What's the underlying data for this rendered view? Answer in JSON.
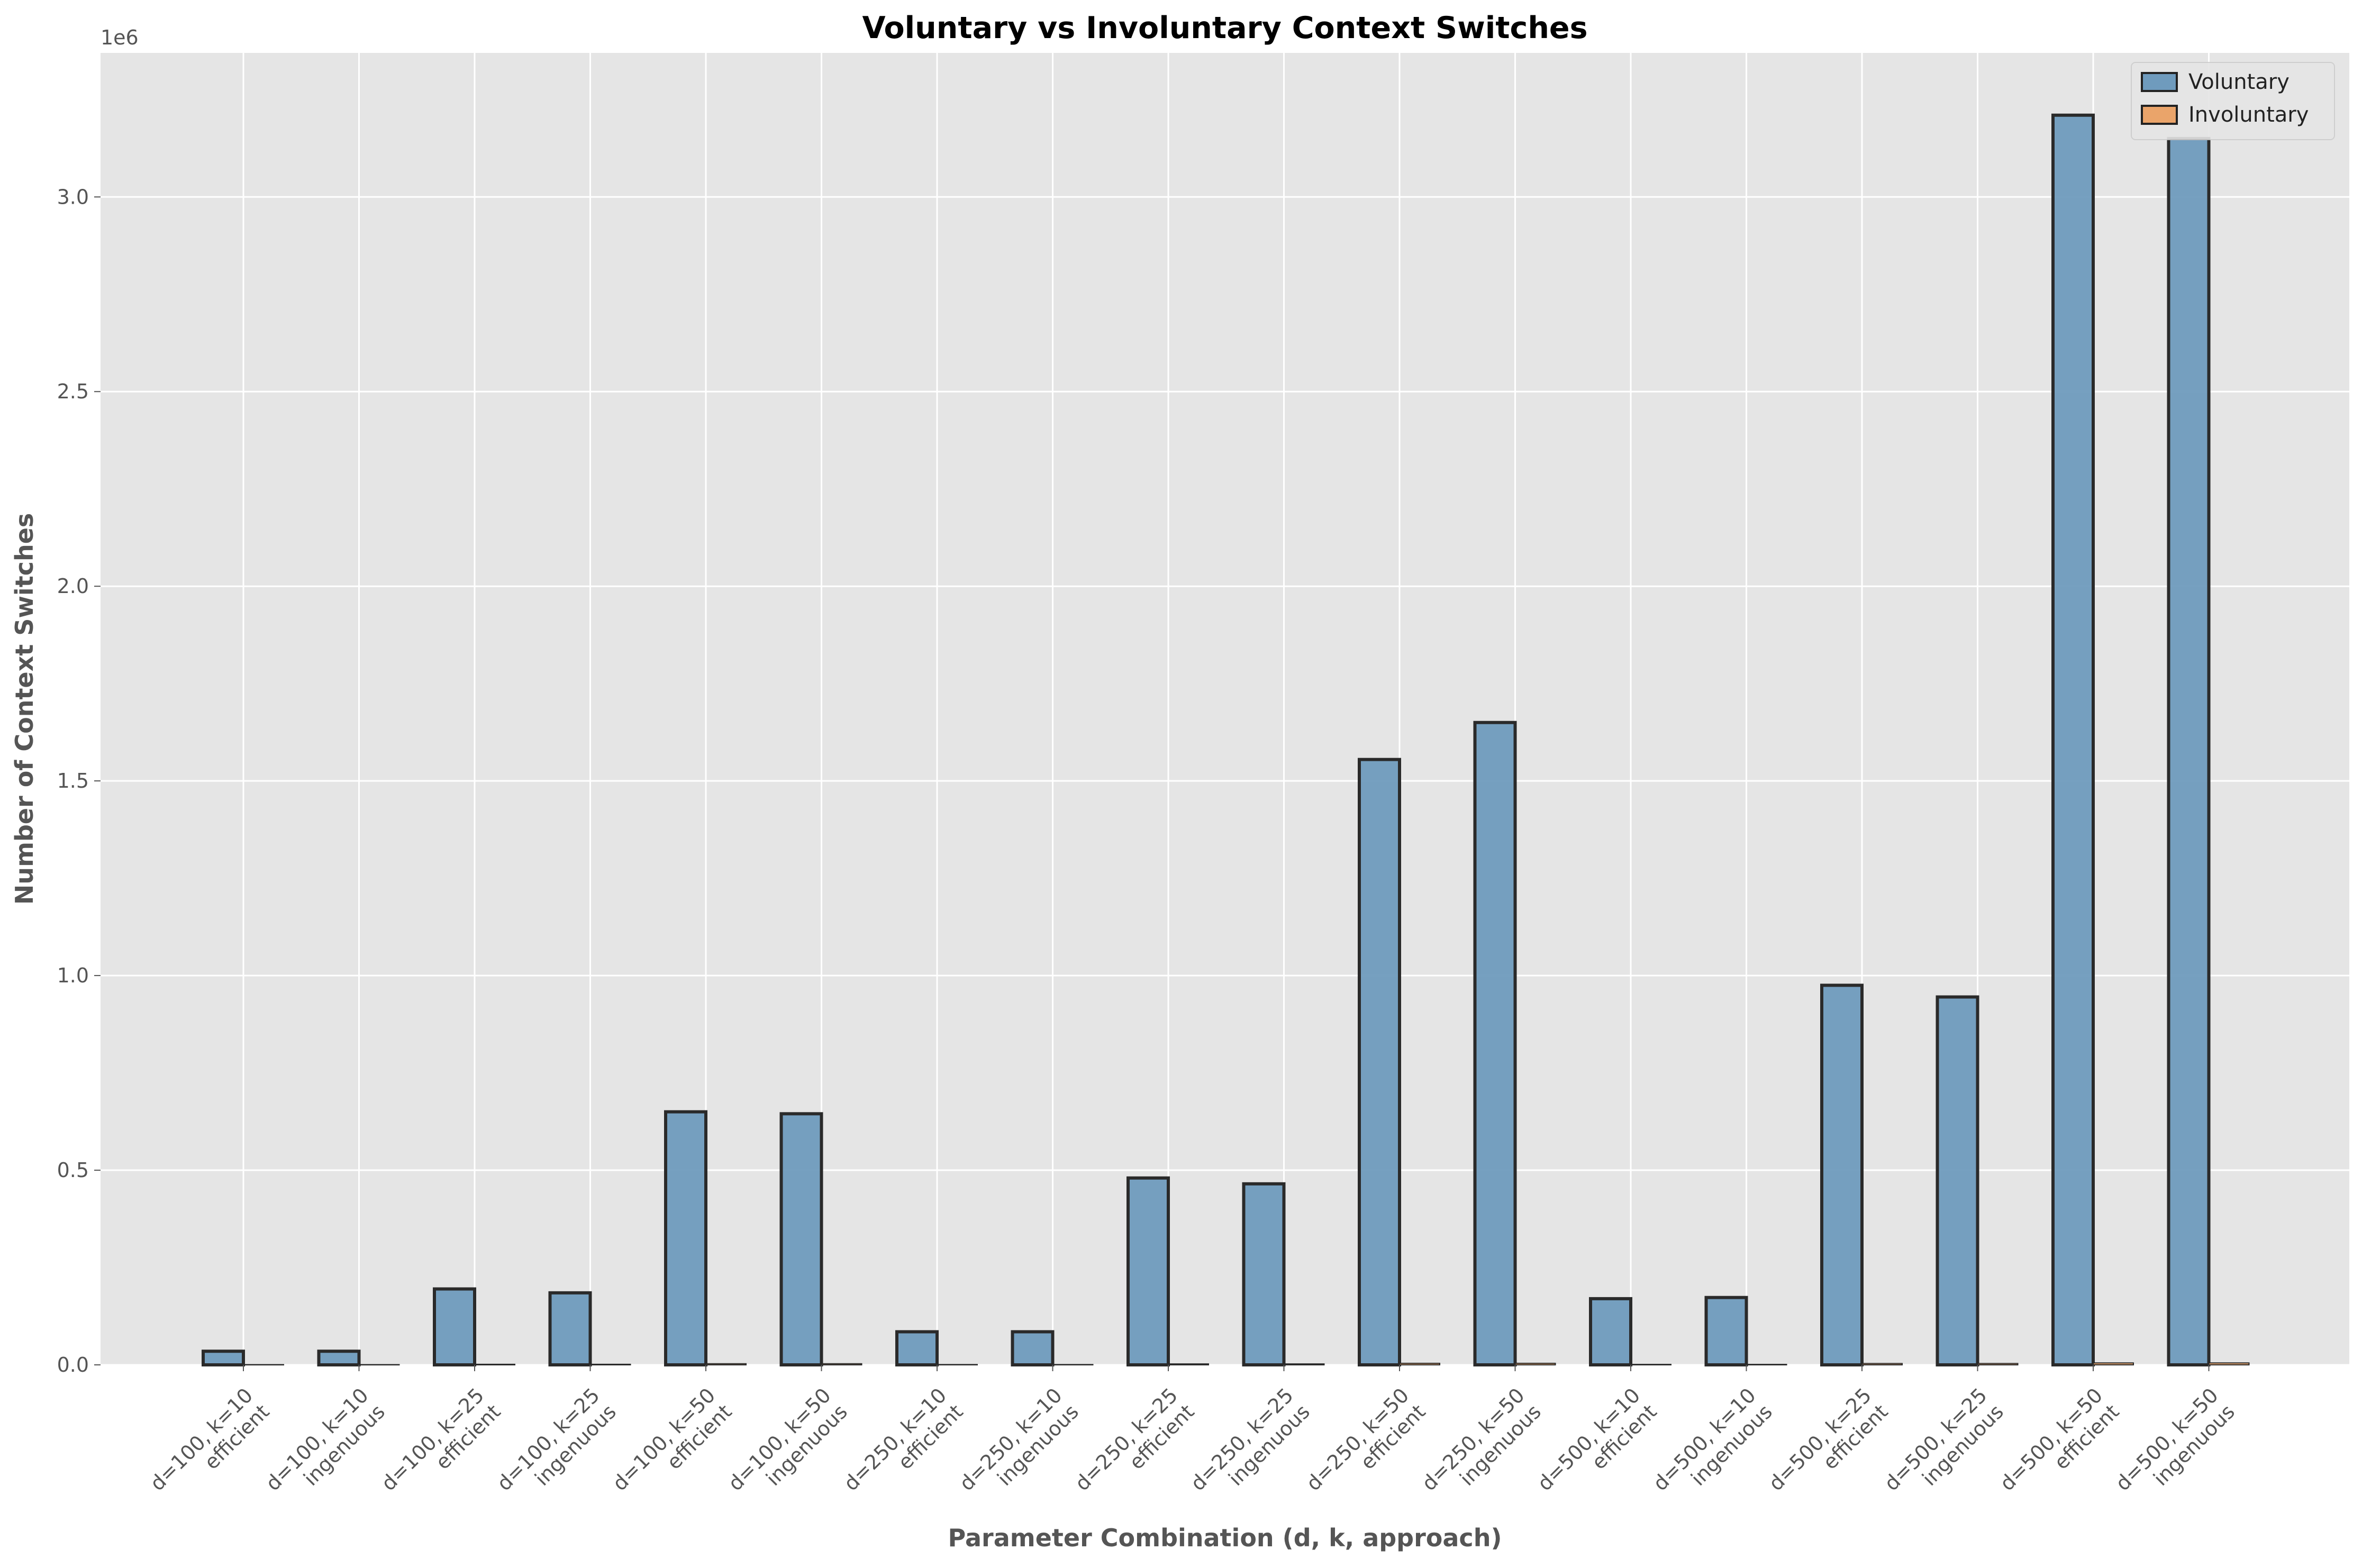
{
  "chart_data": {
    "type": "bar",
    "title": "Voluntary vs Involuntary Context Switches",
    "xlabel": "Parameter Combination (d, k, approach)",
    "ylabel": "Number of Context Switches",
    "y_offset_label": "1e6",
    "ylim": [
      0,
      3370000
    ],
    "yticks": [
      0,
      500000,
      1000000,
      1500000,
      2000000,
      2500000,
      3000000
    ],
    "ytick_labels": [
      "0.0",
      "0.5",
      "1.0",
      "1.5",
      "2.0",
      "2.5",
      "3.0"
    ],
    "grid": true,
    "legend_position": "top-right",
    "categories": [
      [
        "d=100, k=10",
        "efficient"
      ],
      [
        "d=100, k=10",
        "ingenuous"
      ],
      [
        "d=100, k=25",
        "efficient"
      ],
      [
        "d=100, k=25",
        "ingenuous"
      ],
      [
        "d=100, k=50",
        "efficient"
      ],
      [
        "d=100, k=50",
        "ingenuous"
      ],
      [
        "d=250, k=10",
        "efficient"
      ],
      [
        "d=250, k=10",
        "ingenuous"
      ],
      [
        "d=250, k=25",
        "efficient"
      ],
      [
        "d=250, k=25",
        "ingenuous"
      ],
      [
        "d=250, k=50",
        "efficient"
      ],
      [
        "d=250, k=50",
        "ingenuous"
      ],
      [
        "d=500, k=10",
        "efficient"
      ],
      [
        "d=500, k=10",
        "ingenuous"
      ],
      [
        "d=500, k=25",
        "efficient"
      ],
      [
        "d=500, k=25",
        "ingenuous"
      ],
      [
        "d=500, k=50",
        "efficient"
      ],
      [
        "d=500, k=50",
        "ingenuous"
      ]
    ],
    "series": [
      {
        "name": "Voluntary",
        "color": "#6f9bbd",
        "values": [
          35000,
          35000,
          195000,
          185000,
          650000,
          645000,
          85000,
          85000,
          480000,
          465000,
          1555000,
          1650000,
          170000,
          173000,
          975000,
          945000,
          3210000,
          3150000
        ]
      },
      {
        "name": "Involuntary",
        "color": "#eaa46a",
        "values": [
          600,
          600,
          1500,
          1500,
          3000,
          3000,
          800,
          800,
          2500,
          2500,
          4000,
          4000,
          1200,
          1200,
          3500,
          3500,
          5000,
          5000
        ]
      }
    ]
  }
}
